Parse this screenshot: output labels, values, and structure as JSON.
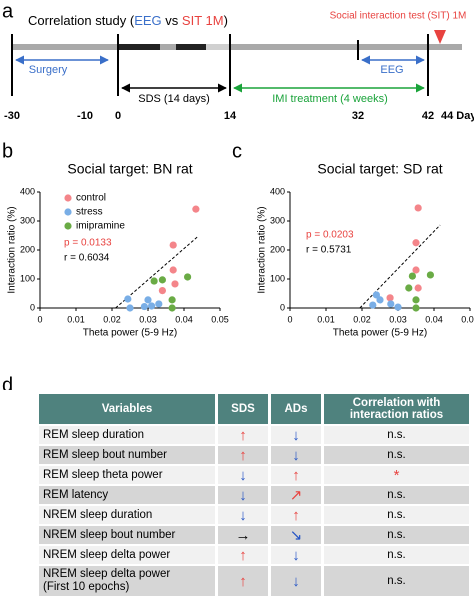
{
  "panel_labels": [
    "a",
    "b",
    "c",
    "d"
  ],
  "timeline": {
    "title_parts": [
      "Correlation study (",
      "EEG",
      " vs ",
      "SIT 1M",
      ")"
    ],
    "sit_label": "Social interaction test (SIT) 1M",
    "surgery": "Surgery",
    "eeg": "EEG",
    "sds": "SDS (14 days)",
    "imi": "IMI treatment (4 weeks)",
    "day_labels": [
      "-30",
      "-10",
      "0",
      "14",
      "32",
      "42",
      "44 Days"
    ]
  },
  "chart_data": [
    {
      "type": "scatter",
      "title": "Social target: BN rat",
      "xlabel": "Theta power (5-9 Hz)",
      "ylabel": "Interaction ratio (%)",
      "xlim": [
        0,
        0.05
      ],
      "xticks": [
        0,
        0.01,
        0.02,
        0.03,
        0.04,
        0.05
      ],
      "ylim": [
        0,
        400
      ],
      "yticks": [
        0,
        100,
        200,
        300,
        400
      ],
      "legend": "upper left",
      "series": [
        {
          "name": "control",
          "color": "#f4858a",
          "x": [
            0.0433,
            0.037,
            0.037,
            0.0375,
            0.034
          ],
          "y": [
            341,
            217,
            131,
            83,
            60
          ]
        },
        {
          "name": "stress",
          "color": "#79aee6",
          "x": [
            0.0244,
            0.025,
            0.03,
            0.031,
            0.033,
            0.029
          ],
          "y": [
            31,
            0,
            28,
            7,
            14,
            5
          ]
        },
        {
          "name": "imipramine",
          "color": "#6aab45",
          "x": [
            0.0317,
            0.034,
            0.041,
            0.0367,
            0.0367
          ],
          "y": [
            93,
            97,
            107,
            28,
            0
          ]
        }
      ],
      "trend_line": {
        "x": [
          0.021,
          0.044
        ],
        "y": [
          0,
          248
        ]
      },
      "annotations": [
        {
          "text": "p = 0.0133",
          "color": "#e8423f"
        },
        {
          "text": "r = 0.6034",
          "color": "#000000"
        }
      ]
    },
    {
      "type": "scatter",
      "title": "Social target: SD rat",
      "xlabel": "Theta power (5-9 Hz)",
      "ylabel": "Interaction ratio (%)",
      "xlim": [
        0,
        0.05
      ],
      "xticks": [
        0,
        0.01,
        0.02,
        0.03,
        0.04,
        0.05
      ],
      "ylim": [
        0,
        400
      ],
      "yticks": [
        0,
        100,
        200,
        300,
        400
      ],
      "series": [
        {
          "color": "#f4858a",
          "x": [
            0.0356,
            0.035,
            0.035,
            0.0356,
            0.0278
          ],
          "y": [
            345,
            225,
            131,
            69,
            35
          ]
        },
        {
          "color": "#79aee6",
          "x": [
            0.025,
            0.024,
            0.023,
            0.028,
            0.03
          ],
          "y": [
            28,
            45,
            10,
            14,
            3
          ]
        },
        {
          "color": "#6aab45",
          "x": [
            0.034,
            0.039,
            0.033,
            0.035,
            0.035
          ],
          "y": [
            110,
            114,
            69,
            28,
            0
          ]
        }
      ],
      "trend_line": {
        "x": [
          0.0194,
          0.0417
        ],
        "y": [
          0,
          286
        ]
      },
      "annotations": [
        {
          "text": "p = 0.0203",
          "color": "#e8423f"
        },
        {
          "text": "r = 0.5731",
          "color": "#000000"
        }
      ]
    }
  ],
  "table": {
    "header": [
      "Variables",
      "SDS",
      "ADs",
      "Correlation with interaction ratios"
    ],
    "rows": [
      [
        "REM sleep duration",
        "↑",
        "↓",
        "n.s."
      ],
      [
        "REM sleep bout number",
        "↑",
        "↓",
        "n.s."
      ],
      [
        "REM sleep theta power",
        "↓",
        "↑",
        "*"
      ],
      [
        "REM latency",
        "↓",
        "↗",
        "n.s."
      ],
      [
        "NREM sleep duration",
        "↓",
        "↑",
        "n.s."
      ],
      [
        "NREM sleep bout number",
        "→",
        "↘",
        "n.s."
      ],
      [
        "NREM sleep delta power",
        "↑",
        "↓",
        "n.s."
      ],
      [
        "NREM sleep delta power\n(First 10 epochs)",
        "↑",
        "↓",
        "n.s."
      ]
    ]
  }
}
